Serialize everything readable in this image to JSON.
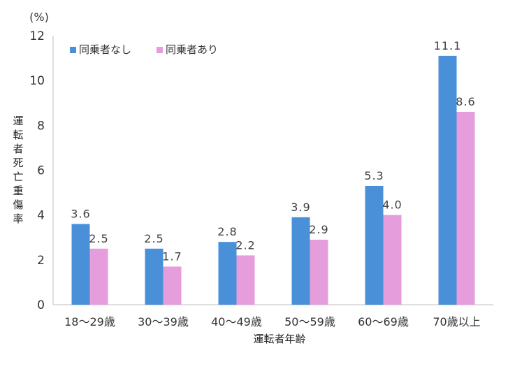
{
  "chart_data": {
    "type": "bar",
    "unit_label": "(%)",
    "xlabel": "運転者年齢",
    "ylabel": "運転者死亡重傷率",
    "ylim": [
      0,
      12
    ],
    "yticks": [
      0,
      2,
      4,
      6,
      8,
      10,
      12
    ],
    "grid": false,
    "legend_position": "top-left",
    "categories": [
      "18～29歳",
      "30～39歳",
      "40～49歳",
      "50～59歳",
      "60～69歳",
      "70歳以上"
    ],
    "series": [
      {
        "name": "同乗者なし",
        "color": "#4A90D9",
        "values": [
          3.6,
          2.5,
          2.8,
          3.9,
          5.3,
          11.1
        ],
        "labels": [
          "3.6",
          "2.5",
          "2.8",
          "3.9",
          "5.3",
          "11.1"
        ]
      },
      {
        "name": "同乗者あり",
        "color": "#E59DDC",
        "values": [
          2.5,
          1.7,
          2.2,
          2.9,
          4.0,
          8.6
        ],
        "labels": [
          "2.5",
          "1.7",
          "2.2",
          "2.9",
          "4.0",
          "8.6"
        ]
      }
    ]
  }
}
